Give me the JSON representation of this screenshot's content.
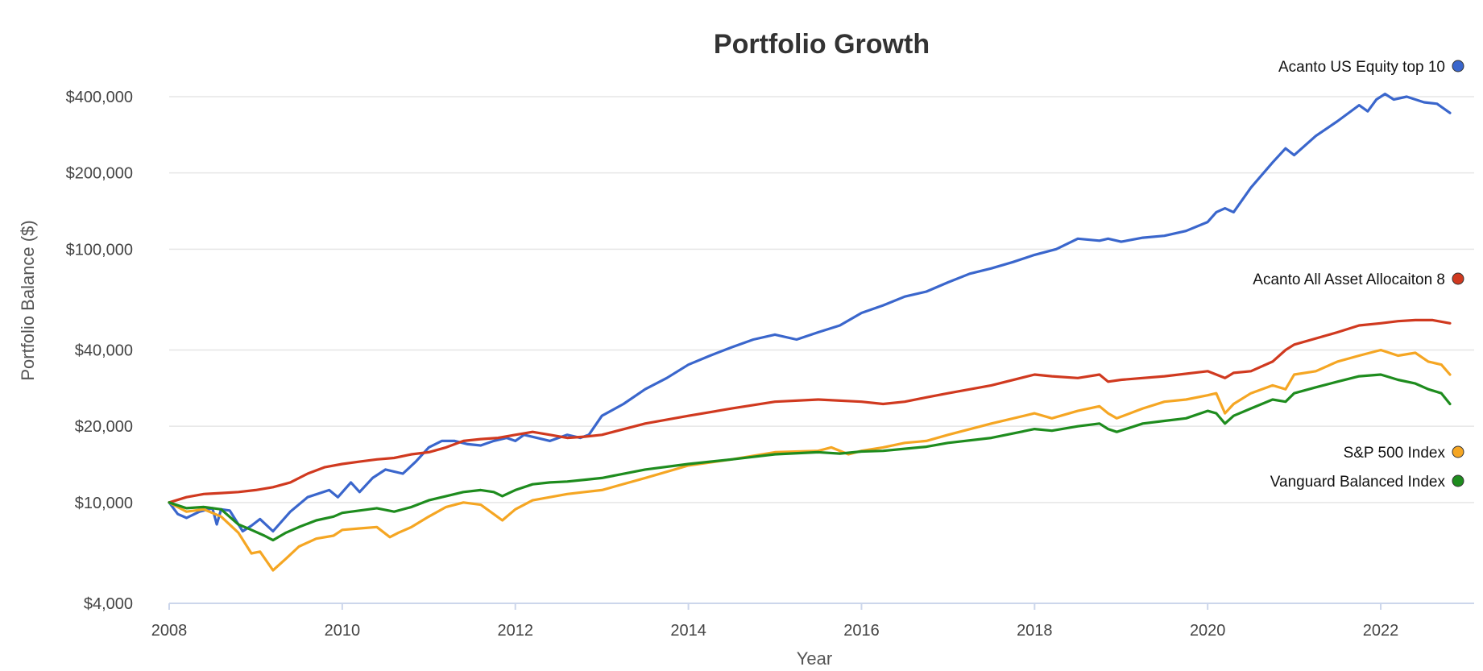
{
  "chart_data": {
    "type": "line",
    "title": "Portfolio Growth",
    "xlabel": "Year",
    "ylabel": "Portfolio Balance ($)",
    "yscale": "log",
    "ylim": [
      4000,
      460000
    ],
    "xlim": [
      2008,
      2022.8
    ],
    "y_ticks": [
      {
        "value": 4000,
        "label": "$4,000"
      },
      {
        "value": 10000,
        "label": "$10,000"
      },
      {
        "value": 20000,
        "label": "$20,000"
      },
      {
        "value": 40000,
        "label": "$40,000"
      },
      {
        "value": 100000,
        "label": "$100,000"
      },
      {
        "value": 200000,
        "label": "$200,000"
      },
      {
        "value": 400000,
        "label": "$400,000"
      }
    ],
    "x_ticks": [
      {
        "value": 2008,
        "label": "2008"
      },
      {
        "value": 2010,
        "label": "2010"
      },
      {
        "value": 2012,
        "label": "2012"
      },
      {
        "value": 2014,
        "label": "2014"
      },
      {
        "value": 2016,
        "label": "2016"
      },
      {
        "value": 2018,
        "label": "2018"
      },
      {
        "value": 2020,
        "label": "2020"
      },
      {
        "value": 2022,
        "label": "2022"
      }
    ],
    "grid": true,
    "legend_position": "right",
    "series": [
      {
        "name": "Acanto US Equity top 10",
        "color": "#3a66cc",
        "x": [
          2008,
          2008.1,
          2008.2,
          2008.35,
          2008.5,
          2008.55,
          2008.6,
          2008.7,
          2008.85,
          2008.95,
          2009.05,
          2009.2,
          2009.4,
          2009.6,
          2009.85,
          2009.95,
          2010.1,
          2010.2,
          2010.35,
          2010.5,
          2010.7,
          2010.85,
          2011.0,
          2011.15,
          2011.3,
          2011.45,
          2011.6,
          2011.75,
          2011.9,
          2012.0,
          2012.1,
          2012.25,
          2012.4,
          2012.6,
          2012.75,
          2012.85,
          2013.0,
          2013.25,
          2013.5,
          2013.75,
          2014.0,
          2014.25,
          2014.5,
          2014.75,
          2015.0,
          2015.25,
          2015.5,
          2015.75,
          2016.0,
          2016.25,
          2016.5,
          2016.75,
          2017.0,
          2017.25,
          2017.5,
          2017.75,
          2018.0,
          2018.25,
          2018.5,
          2018.75,
          2018.85,
          2019.0,
          2019.25,
          2019.5,
          2019.75,
          2020.0,
          2020.1,
          2020.2,
          2020.3,
          2020.5,
          2020.75,
          2020.9,
          2021.0,
          2021.25,
          2021.5,
          2021.75,
          2021.85,
          2021.95,
          2022.05,
          2022.15,
          2022.3,
          2022.5,
          2022.65,
          2022.8
        ],
        "values": [
          10000,
          9000,
          8700,
          9200,
          9500,
          8200,
          9400,
          9300,
          7700,
          8100,
          8600,
          7700,
          9200,
          10500,
          11200,
          10500,
          12000,
          11000,
          12500,
          13500,
          13000,
          14500,
          16500,
          17500,
          17500,
          17000,
          16800,
          17500,
          18000,
          17500,
          18500,
          18000,
          17500,
          18500,
          18000,
          18500,
          22000,
          24500,
          28000,
          31000,
          35000,
          38000,
          41000,
          44000,
          46000,
          44000,
          47000,
          50000,
          56000,
          60000,
          65000,
          68000,
          74000,
          80000,
          84000,
          89000,
          95000,
          100000,
          110000,
          108000,
          110000,
          107000,
          111000,
          113000,
          118000,
          128000,
          140000,
          145000,
          140000,
          175000,
          220000,
          250000,
          235000,
          280000,
          320000,
          370000,
          350000,
          390000,
          410000,
          390000,
          400000,
          380000,
          375000,
          345000
        ]
      },
      {
        "name": "Acanto All Asset Allocaiton 8",
        "color": "#d0391f",
        "x": [
          2008,
          2008.2,
          2008.4,
          2008.6,
          2008.8,
          2009.0,
          2009.2,
          2009.4,
          2009.6,
          2009.8,
          2010.0,
          2010.2,
          2010.4,
          2010.6,
          2010.8,
          2011.0,
          2011.2,
          2011.4,
          2011.6,
          2011.8,
          2012.0,
          2012.2,
          2012.4,
          2012.6,
          2012.8,
          2013.0,
          2013.5,
          2014.0,
          2014.5,
          2015.0,
          2015.5,
          2016.0,
          2016.25,
          2016.5,
          2016.75,
          2017.0,
          2017.5,
          2018.0,
          2018.2,
          2018.5,
          2018.75,
          2018.85,
          2019.0,
          2019.5,
          2020.0,
          2020.2,
          2020.3,
          2020.5,
          2020.75,
          2020.9,
          2021.0,
          2021.5,
          2021.75,
          2022.0,
          2022.2,
          2022.4,
          2022.6,
          2022.8
        ],
        "values": [
          10000,
          10500,
          10800,
          10900,
          11000,
          11200,
          11500,
          12000,
          13000,
          13800,
          14200,
          14500,
          14800,
          15000,
          15500,
          15800,
          16500,
          17500,
          17800,
          18000,
          18500,
          19000,
          18500,
          18000,
          18200,
          18500,
          20500,
          22000,
          23500,
          25000,
          25500,
          25000,
          24500,
          25000,
          26000,
          27000,
          29000,
          32000,
          31500,
          31000,
          32000,
          30000,
          30500,
          31500,
          33000,
          31000,
          32500,
          33000,
          36000,
          40000,
          42000,
          47000,
          50000,
          51000,
          52000,
          52500,
          52500,
          51000
        ]
      },
      {
        "name": "S&P 500 Index",
        "color": "#f5a623",
        "x": [
          2008,
          2008.2,
          2008.4,
          2008.6,
          2008.8,
          2008.95,
          2009.05,
          2009.2,
          2009.35,
          2009.5,
          2009.7,
          2009.9,
          2010.0,
          2010.2,
          2010.4,
          2010.55,
          2010.65,
          2010.8,
          2011.0,
          2011.2,
          2011.4,
          2011.6,
          2011.75,
          2011.85,
          2012.0,
          2012.2,
          2012.4,
          2012.6,
          2012.8,
          2013.0,
          2013.5,
          2014.0,
          2014.5,
          2015.0,
          2015.5,
          2015.65,
          2015.85,
          2016.0,
          2016.25,
          2016.5,
          2016.75,
          2017.0,
          2017.5,
          2018.0,
          2018.2,
          2018.5,
          2018.75,
          2018.85,
          2018.95,
          2019.25,
          2019.5,
          2019.75,
          2020.0,
          2020.1,
          2020.2,
          2020.3,
          2020.5,
          2020.75,
          2020.9,
          2021.0,
          2021.25,
          2021.5,
          2021.75,
          2022.0,
          2022.2,
          2022.4,
          2022.55,
          2022.7,
          2022.8
        ],
        "values": [
          10000,
          9200,
          9400,
          8800,
          7600,
          6300,
          6400,
          5400,
          6000,
          6700,
          7200,
          7400,
          7800,
          7900,
          8000,
          7300,
          7600,
          8000,
          8800,
          9600,
          10000,
          9800,
          9000,
          8500,
          9400,
          10200,
          10500,
          10800,
          11000,
          11200,
          12500,
          14000,
          14800,
          15800,
          16000,
          16500,
          15500,
          16000,
          16500,
          17200,
          17500,
          18500,
          20500,
          22500,
          21500,
          23000,
          24000,
          22500,
          21500,
          23500,
          25000,
          25500,
          26500,
          27000,
          22500,
          24500,
          27000,
          29000,
          28000,
          32000,
          33000,
          36000,
          38000,
          40000,
          38000,
          39000,
          36000,
          35000,
          32000
        ]
      },
      {
        "name": "Vanguard  Balanced Index",
        "color": "#1e8c1e",
        "x": [
          2008,
          2008.2,
          2008.4,
          2008.6,
          2008.8,
          2008.95,
          2009.1,
          2009.2,
          2009.35,
          2009.5,
          2009.7,
          2009.9,
          2010.0,
          2010.2,
          2010.4,
          2010.6,
          2010.8,
          2011.0,
          2011.2,
          2011.4,
          2011.6,
          2011.75,
          2011.85,
          2012.0,
          2012.2,
          2012.4,
          2012.6,
          2012.8,
          2013.0,
          2013.5,
          2014.0,
          2014.5,
          2015.0,
          2015.5,
          2015.75,
          2016.0,
          2016.25,
          2016.5,
          2016.75,
          2017.0,
          2017.5,
          2018.0,
          2018.2,
          2018.5,
          2018.75,
          2018.85,
          2018.95,
          2019.25,
          2019.5,
          2019.75,
          2020.0,
          2020.1,
          2020.2,
          2020.3,
          2020.5,
          2020.75,
          2020.9,
          2021.0,
          2021.25,
          2021.5,
          2021.75,
          2022.0,
          2022.2,
          2022.4,
          2022.55,
          2022.7,
          2022.8
        ],
        "values": [
          10000,
          9500,
          9600,
          9400,
          8200,
          7800,
          7400,
          7100,
          7600,
          8000,
          8500,
          8800,
          9100,
          9300,
          9500,
          9200,
          9600,
          10200,
          10600,
          11000,
          11200,
          11000,
          10600,
          11200,
          11800,
          12000,
          12100,
          12300,
          12500,
          13500,
          14200,
          14800,
          15500,
          15800,
          15600,
          15900,
          16000,
          16300,
          16600,
          17200,
          18000,
          19500,
          19200,
          20000,
          20500,
          19500,
          19000,
          20500,
          21000,
          21500,
          23000,
          22500,
          20500,
          22000,
          23500,
          25500,
          25000,
          27000,
          28500,
          30000,
          31500,
          32000,
          30500,
          29500,
          28000,
          27000,
          24500
        ]
      }
    ]
  }
}
